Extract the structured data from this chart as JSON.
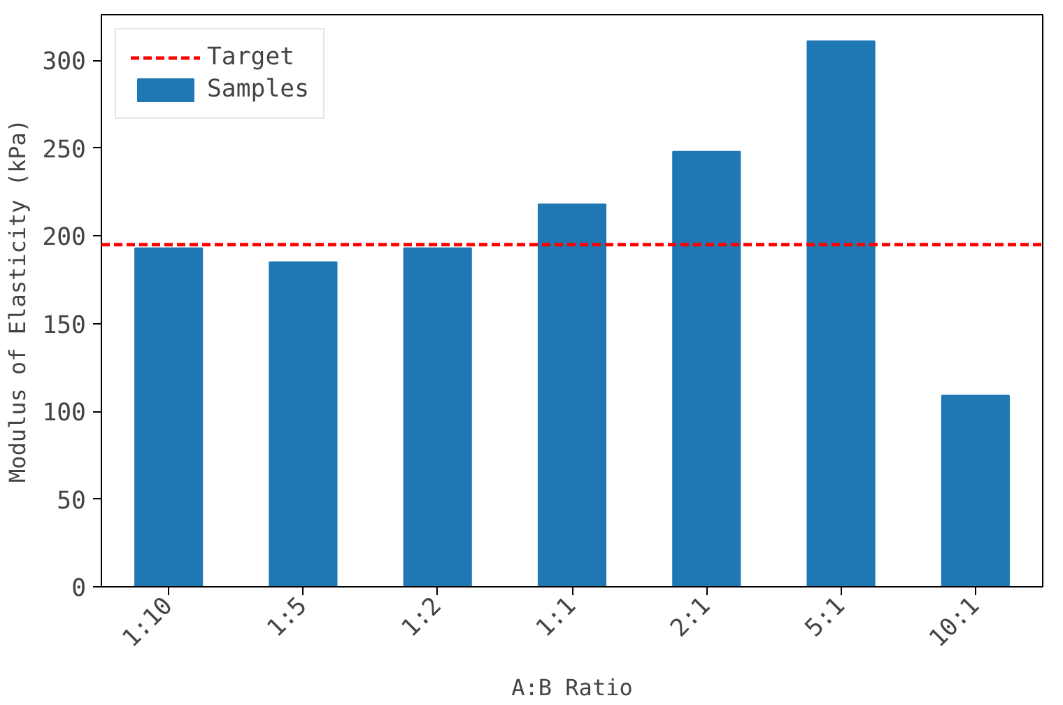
{
  "chart_data": {
    "type": "bar",
    "xlabel": "A:B Ratio",
    "ylabel": "Modulus of Elasticity (kPa)",
    "categories": [
      "1:10",
      "1:5",
      "1:2",
      "1:1",
      "2:1",
      "5:1",
      "10:1"
    ],
    "series": [
      {
        "name": "Samples",
        "color": "#1f77b4",
        "values": [
          193,
          185,
          193,
          218,
          248,
          311,
          109
        ]
      }
    ],
    "ref_lines": [
      {
        "axis": "y",
        "value": 195,
        "label": "Target",
        "color": "#ff0000",
        "line_style": "dashed"
      }
    ],
    "ylim": [
      0,
      326
    ],
    "yticks": [
      0,
      50,
      100,
      150,
      200,
      250,
      300
    ],
    "legend": "top left",
    "grid": false
  }
}
